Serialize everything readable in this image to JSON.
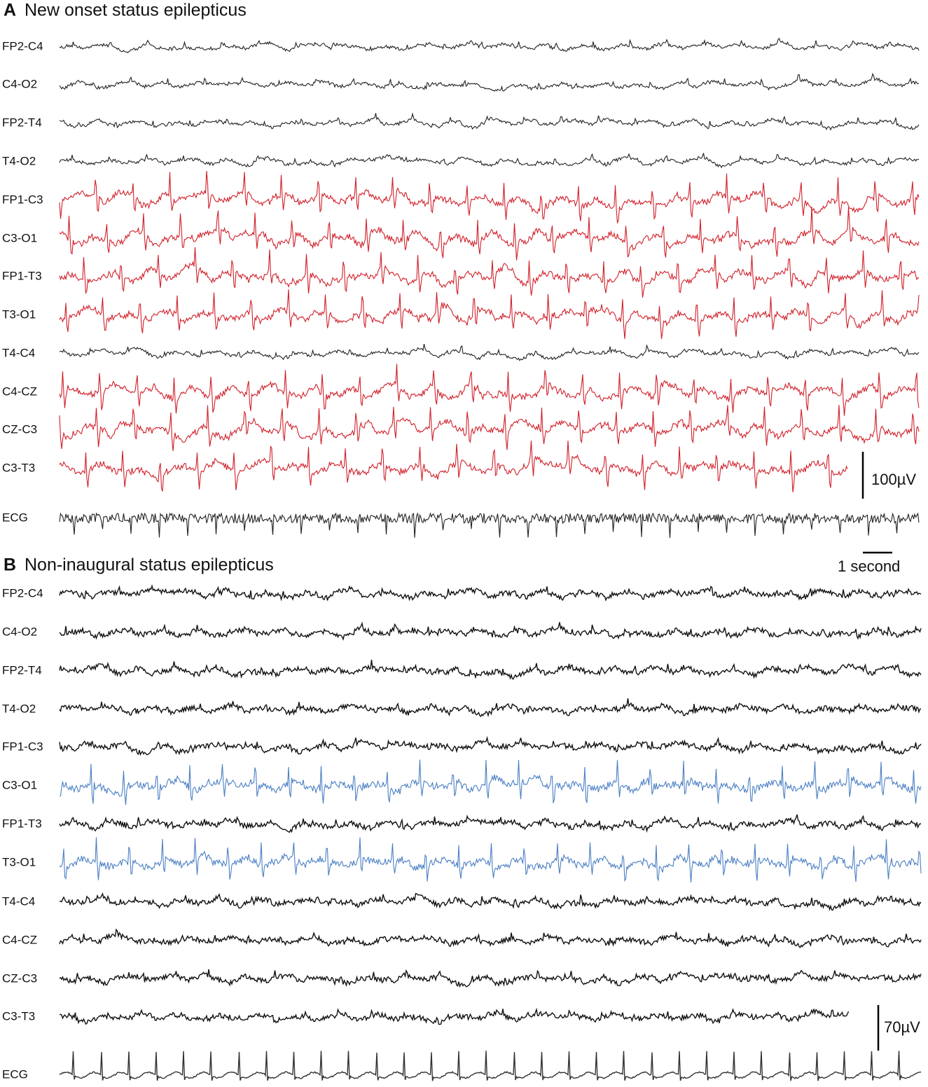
{
  "panels": [
    {
      "letter": "A",
      "title": "New onset status epilepticus",
      "channels": [
        {
          "label": "FP2-C4",
          "color": "#222222"
        },
        {
          "label": "C4-O2",
          "color": "#222222"
        },
        {
          "label": "FP2-T4",
          "color": "#222222"
        },
        {
          "label": "T4-O2",
          "color": "#222222"
        },
        {
          "label": "FP1-C3",
          "color": "#d0202a"
        },
        {
          "label": "C3-O1",
          "color": "#d0202a"
        },
        {
          "label": "FP1-T3",
          "color": "#d0202a"
        },
        {
          "label": "T3-O1",
          "color": "#d0202a"
        },
        {
          "label": "T4-C4",
          "color": "#222222"
        },
        {
          "label": "C4-CZ",
          "color": "#d0202a"
        },
        {
          "label": "CZ-C3",
          "color": "#d0202a"
        },
        {
          "label": "C3-T3",
          "color": "#d0202a"
        },
        {
          "label": "ECG",
          "color": "#222222"
        }
      ],
      "amplitude_scale": "100µV",
      "time_scale": "1 second"
    },
    {
      "letter": "B",
      "title": "Non-inaugural status epilepticus",
      "channels": [
        {
          "label": "FP2-C4",
          "color": "#111111"
        },
        {
          "label": "C4-O2",
          "color": "#111111"
        },
        {
          "label": "FP2-T4",
          "color": "#111111"
        },
        {
          "label": "T4-O2",
          "color": "#111111"
        },
        {
          "label": "FP1-C3",
          "color": "#111111"
        },
        {
          "label": "C3-O1",
          "color": "#4a7fc4"
        },
        {
          "label": "FP1-T3",
          "color": "#111111"
        },
        {
          "label": "T3-O1",
          "color": "#4a7fc4"
        },
        {
          "label": "T4-C4",
          "color": "#111111"
        },
        {
          "label": "C4-CZ",
          "color": "#111111"
        },
        {
          "label": "CZ-C3",
          "color": "#111111"
        },
        {
          "label": "C3-T3",
          "color": "#111111"
        },
        {
          "label": "ECG",
          "color": "#333333"
        }
      ],
      "amplitude_scale": "70µV"
    }
  ]
}
